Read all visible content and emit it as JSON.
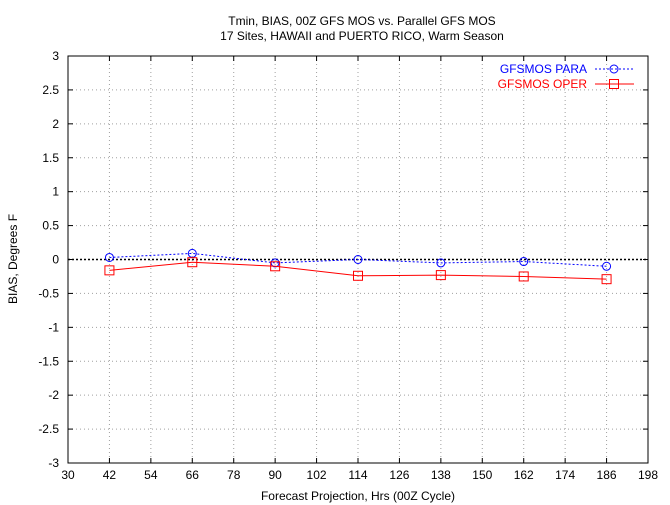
{
  "chart_data": {
    "type": "line",
    "title_lines": [
      "Tmin, BIAS, 00Z GFS MOS vs. Parallel GFS MOS",
      "17 Sites, HAWAII and PUERTO RICO, Warm Season"
    ],
    "xlabel": "Forecast Projection, Hrs (00Z Cycle)",
    "ylabel": "BIAS, Degrees F",
    "xlim": [
      30,
      198
    ],
    "ylim": [
      -3,
      3
    ],
    "xticks": [
      30,
      42,
      54,
      66,
      78,
      90,
      102,
      114,
      126,
      138,
      150,
      162,
      174,
      186,
      198
    ],
    "yticks": [
      -3,
      -2.5,
      -2,
      -1.5,
      -1,
      -0.5,
      0,
      0.5,
      1,
      1.5,
      2,
      2.5,
      3
    ],
    "grid": true,
    "zero_line": true,
    "legend_position": "top-right",
    "x": [
      42,
      66,
      90,
      114,
      138,
      162,
      186
    ],
    "series": [
      {
        "name": "GFSMOS PARA",
        "color": "#0000ff",
        "line_style": "dotted",
        "marker": "circle",
        "values": [
          0.03,
          0.09,
          -0.05,
          0.0,
          -0.05,
          -0.03,
          -0.1
        ]
      },
      {
        "name": "GFSMOS OPER",
        "color": "#ff0000",
        "line_style": "solid",
        "marker": "square",
        "values": [
          -0.16,
          -0.04,
          -0.1,
          -0.24,
          -0.23,
          -0.25,
          -0.29
        ]
      }
    ]
  }
}
